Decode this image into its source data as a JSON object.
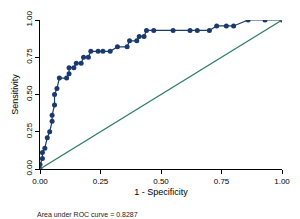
{
  "chart_data": {
    "type": "line",
    "x_label": "1 - Specificity",
    "y_label": "Sensitivity",
    "annotations": [
      "Area under ROC curve = 0.8287"
    ],
    "series": [
      {
        "type": "line",
        "marker": "circle",
        "color": "#1a3a6e",
        "x": [
          0,
          0,
          0.01,
          0.01,
          0.02,
          0.03,
          0.04,
          0.05,
          0.05,
          0.06,
          0.06,
          0.07,
          0.08,
          0.11,
          0.12,
          0.12,
          0.14,
          0.15,
          0.17,
          0.18,
          0.2,
          0.21,
          0.24,
          0.26,
          0.29,
          0.32,
          0.36,
          0.37,
          0.4,
          0.41,
          0.43,
          0.44,
          0.47,
          0.55,
          0.62,
          0.65,
          0.7,
          0.73,
          0.77,
          0.8,
          0.86,
          0.93,
          1
        ],
        "values": [
          0,
          0.03,
          0.07,
          0.11,
          0.14,
          0.21,
          0.25,
          0.32,
          0.36,
          0.43,
          0.5,
          0.54,
          0.61,
          0.61,
          0.64,
          0.68,
          0.68,
          0.71,
          0.71,
          0.75,
          0.75,
          0.79,
          0.79,
          0.79,
          0.79,
          0.82,
          0.82,
          0.86,
          0.86,
          0.89,
          0.89,
          0.93,
          0.93,
          0.93,
          0.93,
          0.93,
          0.93,
          0.96,
          0.96,
          0.96,
          1,
          1,
          1
        ]
      },
      {
        "type": "line",
        "marker": "none",
        "color": "#2f7f6a",
        "x": [
          0,
          1
        ],
        "values": [
          0,
          1
        ]
      }
    ],
    "xlim": [
      0,
      1
    ],
    "ylim": [
      0,
      1
    ],
    "xticks": [
      {
        "value": 0,
        "label": "0.00"
      },
      {
        "value": 0.25,
        "label": "0.25"
      },
      {
        "value": 0.5,
        "label": "0.50"
      },
      {
        "value": 0.75,
        "label": "0.75"
      },
      {
        "value": 1,
        "label": "1.00"
      }
    ],
    "yticks": [
      {
        "value": 0,
        "label": "0.00"
      },
      {
        "value": 0.25,
        "label": "0.25"
      },
      {
        "value": 0.5,
        "label": "0.50"
      },
      {
        "value": 0.75,
        "label": "0.75"
      },
      {
        "value": 1,
        "label": "1.00"
      }
    ],
    "grid": false
  }
}
